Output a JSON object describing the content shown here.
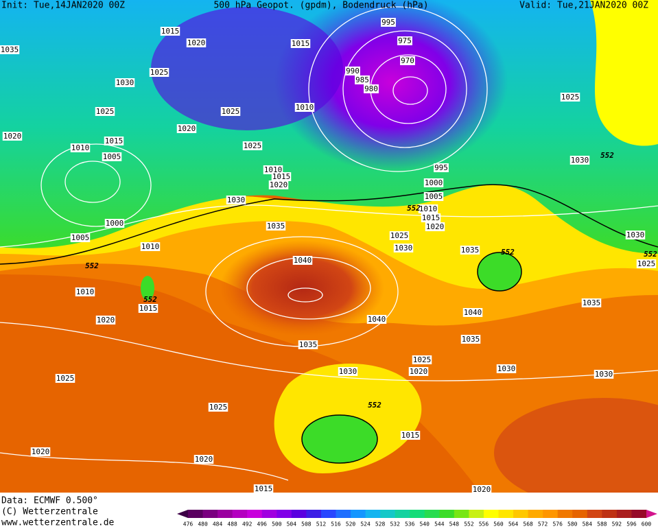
{
  "header": {
    "init": "Init: Tue,14JAN2020 00Z",
    "title": "500 hPa Geopot. (gpdm), Bodendruck (hPa)",
    "valid": "Valid: Tue,21JAN2020 00Z"
  },
  "isobar_labels": [
    "1015",
    "1035",
    "1020",
    "1015",
    "1025",
    "1030",
    "1025",
    "1010",
    "1025",
    "1020",
    "1020",
    "1015",
    "1010",
    "1005",
    "1025",
    "1010",
    "1015",
    "1020",
    "1030",
    "1000",
    "1005",
    "1035",
    "1010",
    "1040",
    "1010",
    "1015",
    "1020",
    "1040",
    "1035",
    "1025",
    "1030",
    "1025",
    "1020",
    "1025",
    "1020",
    "1020",
    "1015",
    "995",
    "975",
    "970",
    "990",
    "985",
    "980",
    "1025",
    "1030",
    "995",
    "1000",
    "1005",
    "1010",
    "1015",
    "1020",
    "1025",
    "1030",
    "1035",
    "1040",
    "1035",
    "1030",
    "1030",
    "1035",
    "1030",
    "1025",
    "1015",
    "1020"
  ],
  "height_labels": [
    "552",
    "552",
    "552",
    "552",
    "552",
    "552",
    "552"
  ],
  "footer": {
    "data": "Data: ECMWF  0.500°",
    "copyright": "(C) Wetterzentrale",
    "url": "www.wetterzentrale.de"
  },
  "colorbar": {
    "labels": [
      476,
      480,
      484,
      488,
      492,
      496,
      500,
      504,
      508,
      512,
      516,
      520,
      524,
      528,
      532,
      536,
      540,
      544,
      548,
      552,
      556,
      560,
      564,
      568,
      572,
      576,
      580,
      584,
      588,
      592,
      596,
      600
    ],
    "colors": [
      "#5a0060",
      "#7a0080",
      "#9a00a0",
      "#b400c0",
      "#c800dc",
      "#a000e0",
      "#8000e8",
      "#5a00e0",
      "#3c1ee6",
      "#2846ff",
      "#1e6eff",
      "#1496ff",
      "#14b4f0",
      "#14c8c8",
      "#14d2a0",
      "#14dc78",
      "#28dc50",
      "#3cdc28",
      "#78e614",
      "#c8f014",
      "#ffff00",
      "#ffe600",
      "#ffc800",
      "#ffaa00",
      "#ff9600",
      "#f07800",
      "#e66400",
      "#d24614",
      "#be3214",
      "#aa1e1e",
      "#960a28"
    ]
  }
}
